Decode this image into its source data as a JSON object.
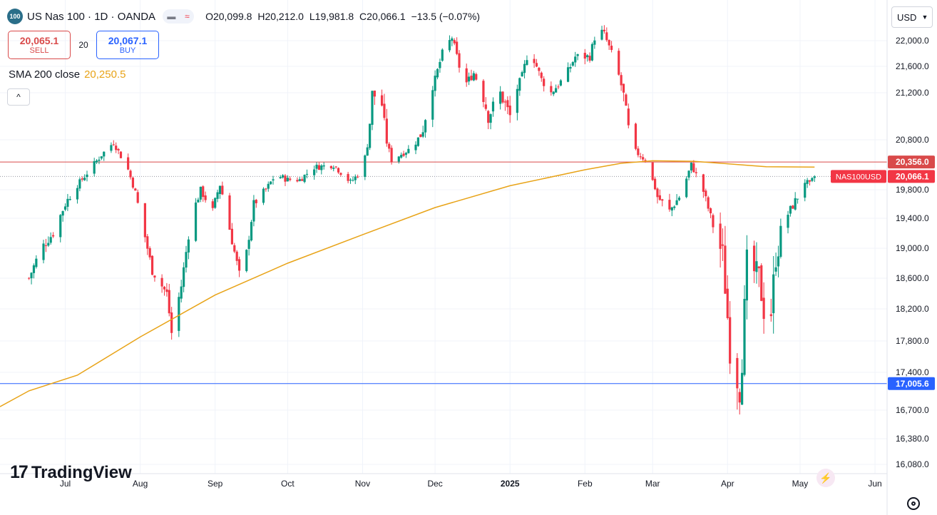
{
  "header": {
    "badge": "100",
    "title": "US Nas 100 · 1D · OANDA",
    "pill_icon_1": "dash-icon",
    "pill_icon_2": "wave-icon",
    "ohlc": {
      "o_label": "O",
      "o": "20,099.8",
      "h_label": "H",
      "h": "20,212.0",
      "l_label": "L",
      "l": "19,981.8",
      "c_label": "C",
      "c": "20,066.1",
      "change": "−13.5 (−0.07%)"
    }
  },
  "trade": {
    "sell_price": "20,065.1",
    "sell_label": "SELL",
    "spread": "20",
    "buy_price": "20,067.1",
    "buy_label": "BUY"
  },
  "indicator": {
    "label": "SMA 200 close",
    "value": "20,250.5",
    "color": "#e8a317"
  },
  "collapse_icon": "^",
  "currency": "USD",
  "branding": {
    "mark": "17",
    "word": "TradingView"
  },
  "colors": {
    "up": "#089981",
    "down": "#f23645",
    "resistance": "#d94a4a",
    "support": "#2962ff",
    "sma": "#e8a317"
  },
  "chart_data": {
    "type": "candlestick",
    "title": "",
    "y_ticks": [
      16080,
      16380,
      16700,
      17000,
      17400,
      17800,
      18200,
      18600,
      19000,
      19400,
      19800,
      20800,
      21200,
      21600,
      22000
    ],
    "y_tick_labels": [
      "16,080.0",
      "16,380.0",
      "16,700.0",
      "17,000.0",
      "17,400.0",
      "17,800.0",
      "18,200.0",
      "18,600.0",
      "19,000.0",
      "19,400.0",
      "19,800.0",
      "20,800.0",
      "21,200.0",
      "21,600.0",
      "22,000.0"
    ],
    "x_labels": [
      "Jul",
      "Aug",
      "Sep",
      "Oct",
      "Nov",
      "Dec",
      "2025",
      "Feb",
      "Mar",
      "Apr",
      "May",
      "Jun"
    ],
    "x_label_days": [
      15,
      46,
      77,
      107,
      138,
      168,
      199,
      230,
      258,
      289,
      319,
      350
    ],
    "x_range_days": [
      -12,
      355
    ],
    "price_lines": [
      {
        "name": "resistance",
        "value": 20356.0,
        "label": "20,356.0"
      },
      {
        "name": "support",
        "value": 17005.6,
        "label": "17,005.6"
      }
    ],
    "last_price": {
      "value": 20066.1,
      "label": "20,066.1",
      "symbol": "NAS100USD"
    },
    "anchors": [
      [
        0,
        18600
      ],
      [
        5,
        19000
      ],
      [
        10,
        19200
      ],
      [
        15,
        19600
      ],
      [
        21,
        19950
      ],
      [
        30,
        20500
      ],
      [
        35,
        20750
      ],
      [
        41,
        20200
      ],
      [
        45,
        19600
      ],
      [
        51,
        18700
      ],
      [
        57,
        18400
      ],
      [
        59,
        17900
      ],
      [
        63,
        18500
      ],
      [
        67,
        19400
      ],
      [
        71,
        19800
      ],
      [
        76,
        19500
      ],
      [
        79,
        19900
      ],
      [
        84,
        19100
      ],
      [
        88,
        18500
      ],
      [
        93,
        19600
      ],
      [
        98,
        19800
      ],
      [
        102,
        20100
      ],
      [
        107,
        20000
      ],
      [
        112,
        20000
      ],
      [
        118,
        20250
      ],
      [
        126,
        20300
      ],
      [
        133,
        19950
      ],
      [
        138,
        20200
      ],
      [
        142,
        21200
      ],
      [
        146,
        21100
      ],
      [
        150,
        20400
      ],
      [
        157,
        20600
      ],
      [
        163,
        20900
      ],
      [
        168,
        21400
      ],
      [
        171,
        21800
      ],
      [
        175,
        22050
      ],
      [
        180,
        21300
      ],
      [
        184,
        21500
      ],
      [
        190,
        21000
      ],
      [
        195,
        21200
      ],
      [
        199,
        21000
      ],
      [
        204,
        21450
      ],
      [
        207,
        21900
      ],
      [
        212,
        21400
      ],
      [
        216,
        21200
      ],
      [
        222,
        21450
      ],
      [
        226,
        21750
      ],
      [
        232,
        21750
      ],
      [
        235,
        22200
      ],
      [
        238,
        22100
      ],
      [
        243,
        21600
      ],
      [
        250,
        20600
      ],
      [
        255,
        20400
      ],
      [
        260,
        19700
      ],
      [
        265,
        19500
      ],
      [
        270,
        19750
      ],
      [
        274,
        20300
      ],
      [
        278,
        19900
      ],
      [
        283,
        19300
      ],
      [
        287,
        18900
      ],
      [
        291,
        17300
      ],
      [
        294,
        16950
      ],
      [
        297,
        18800
      ],
      [
        302,
        18600
      ],
      [
        306,
        17800
      ],
      [
        309,
        18900
      ],
      [
        313,
        19400
      ],
      [
        318,
        19700
      ],
      [
        320,
        20000
      ],
      [
        323,
        19900
      ],
      [
        325,
        20066
      ]
    ],
    "sma200_anchors": [
      [
        -12,
        16740
      ],
      [
        0,
        16920
      ],
      [
        20,
        17300
      ],
      [
        46,
        17850
      ],
      [
        77,
        18380
      ],
      [
        107,
        18800
      ],
      [
        138,
        19180
      ],
      [
        168,
        19550
      ],
      [
        199,
        19880
      ],
      [
        230,
        20200
      ],
      [
        245,
        20330
      ],
      [
        258,
        20380
      ],
      [
        275,
        20370
      ],
      [
        289,
        20320
      ],
      [
        305,
        20260
      ],
      [
        325,
        20255
      ]
    ]
  }
}
